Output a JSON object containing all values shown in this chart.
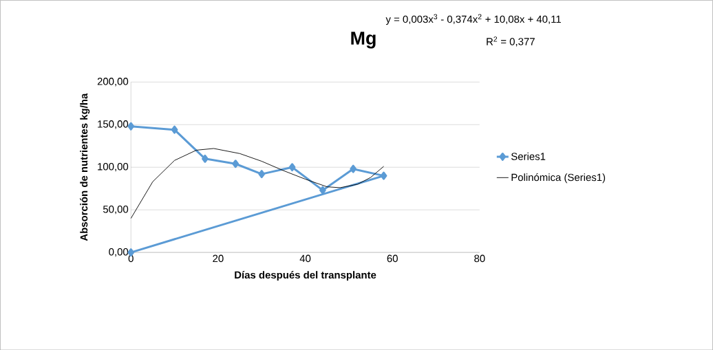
{
  "chart_data": {
    "type": "line",
    "title": "Mg",
    "xlabel": "Días después del transplante",
    "ylabel": "Absorción de nutrientes kg/ha",
    "annotations": [
      "y = 0,003x$^{3}$ - 0,374x$^{2}$ + 10,08x + 40,11",
      "R$^{2}$ = 0,377"
    ],
    "series": [
      {
        "name": "Series1",
        "color": "#5b9bd5",
        "marker": "diamond",
        "x": [
          0,
          10,
          17,
          24,
          30,
          37,
          44,
          51,
          58,
          0
        ],
        "values": [
          148,
          144,
          110,
          104,
          92,
          100,
          73,
          98,
          90,
          0
        ]
      },
      {
        "name": "Polinómica (Series1)",
        "color": "#000000",
        "marker": "none",
        "x": [
          0,
          5,
          10,
          15,
          19,
          25,
          30,
          35,
          40,
          45,
          48,
          52,
          55,
          58
        ],
        "values": [
          40,
          83,
          108,
          120,
          122,
          116,
          107,
          96,
          86,
          77,
          76,
          80,
          88,
          101
        ]
      }
    ],
    "xlim": [
      0,
      80
    ],
    "xticks": [
      0,
      20,
      40,
      60,
      80
    ],
    "ylim": [
      0,
      200
    ],
    "yticks": [
      {
        "value": 0,
        "label": "0,00"
      },
      {
        "value": 50,
        "label": "50,00"
      },
      {
        "value": 100,
        "label": "100,00"
      },
      {
        "value": 150,
        "label": "150,00"
      },
      {
        "value": 200,
        "label": "200,00"
      }
    ],
    "grid": "y",
    "legend": "right"
  }
}
